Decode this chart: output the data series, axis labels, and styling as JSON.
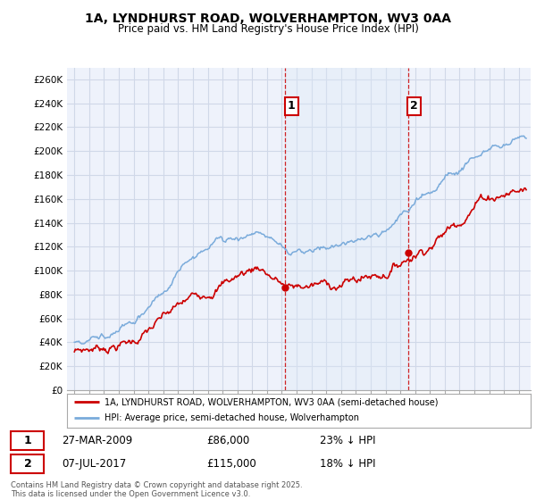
{
  "title": "1A, LYNDHURST ROAD, WOLVERHAMPTON, WV3 0AA",
  "subtitle": "Price paid vs. HM Land Registry's House Price Index (HPI)",
  "ylabel_ticks": [
    "£0",
    "£20K",
    "£40K",
    "£60K",
    "£80K",
    "£100K",
    "£120K",
    "£140K",
    "£160K",
    "£180K",
    "£200K",
    "£220K",
    "£240K",
    "£260K"
  ],
  "ytick_values": [
    0,
    20000,
    40000,
    60000,
    80000,
    100000,
    120000,
    140000,
    160000,
    180000,
    200000,
    220000,
    240000,
    260000
  ],
  "ylim": [
    0,
    270000
  ],
  "xlim_start": 1994.5,
  "xlim_end": 2025.8,
  "sale1_year": 2009.23,
  "sale2_year": 2017.52,
  "sale1_price": 86000,
  "sale2_price": 115000,
  "hpi_color": "#7aabdb",
  "hpi_fill_color": "#ddeaf7",
  "price_color": "#cc0000",
  "legend_label1": "1A, LYNDHURST ROAD, WOLVERHAMPTON, WV3 0AA (semi-detached house)",
  "legend_label2": "HPI: Average price, semi-detached house, Wolverhampton",
  "annotation1_label": "1",
  "annotation2_label": "2",
  "annotation1_date": "27-MAR-2009",
  "annotation1_price": "£86,000",
  "annotation1_hpi": "23% ↓ HPI",
  "annotation2_date": "07-JUL-2017",
  "annotation2_price": "£115,000",
  "annotation2_hpi": "18% ↓ HPI",
  "footer": "Contains HM Land Registry data © Crown copyright and database right 2025.\nThis data is licensed under the Open Government Licence v3.0.",
  "bg_color": "#ffffff",
  "plot_bg_color": "#eef2fb",
  "grid_color": "#d0d8e8"
}
